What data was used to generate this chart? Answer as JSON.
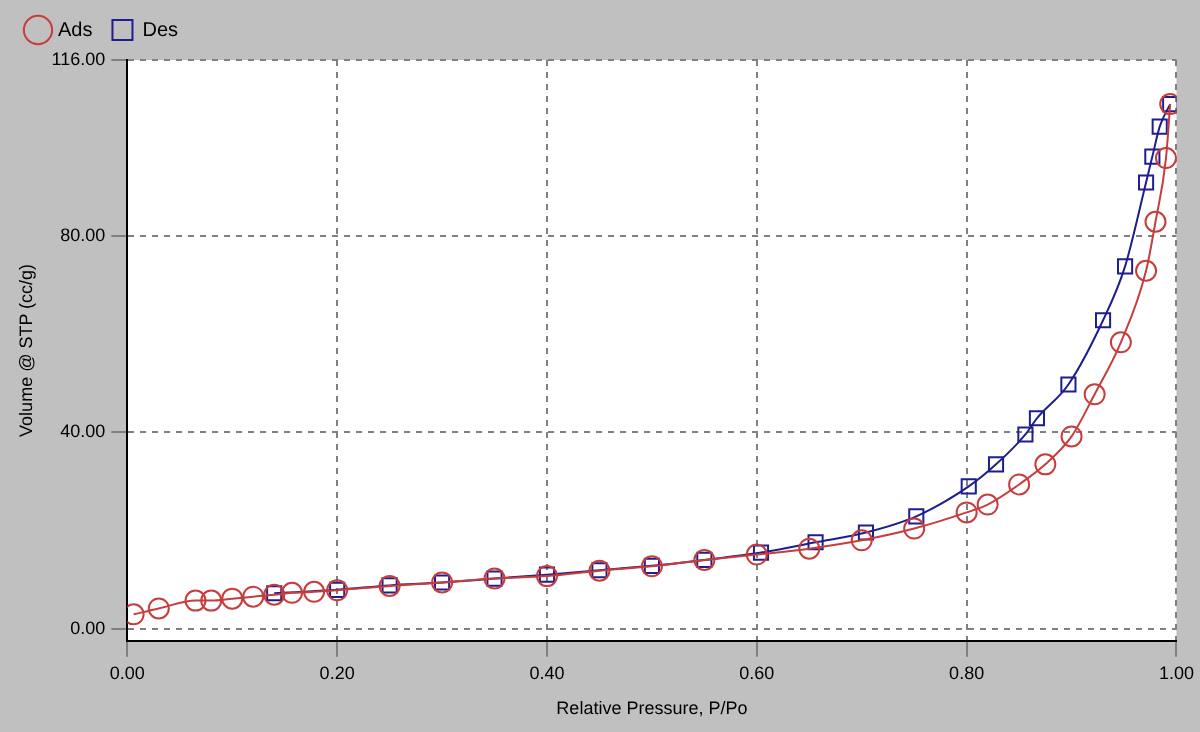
{
  "chart_data": {
    "type": "line",
    "xlabel": "Relative Pressure, P/Po",
    "ylabel": "Volume @ STP (cc/g)",
    "xlim": [
      0,
      1
    ],
    "ylim": [
      -2.5,
      116
    ],
    "xticks": [
      {
        "value": 0,
        "label": "0.00"
      },
      {
        "value": 0.2,
        "label": "0.20"
      },
      {
        "value": 0.4,
        "label": "0.40"
      },
      {
        "value": 0.6,
        "label": "0.60"
      },
      {
        "value": 0.8,
        "label": "0.80"
      },
      {
        "value": 1,
        "label": "1.00"
      }
    ],
    "yticks": [
      {
        "value": 0,
        "label": "0.00"
      },
      {
        "value": 40,
        "label": "40.00"
      },
      {
        "value": 80,
        "label": "80.00"
      },
      {
        "value": 116,
        "label": "116.00"
      }
    ],
    "grid": true,
    "legend": "top left",
    "line_style": "solid",
    "series": [
      {
        "name": "Ads",
        "color": "#c83c3c",
        "marker": "circle",
        "x": [
          0.006,
          0.03,
          0.065,
          0.08,
          0.1,
          0.12,
          0.14,
          0.157,
          0.178,
          0.2,
          0.25,
          0.3,
          0.35,
          0.4,
          0.45,
          0.5,
          0.55,
          0.6,
          0.65,
          0.7,
          0.75,
          0.8,
          0.82,
          0.85,
          0.875,
          0.9,
          0.922,
          0.947,
          0.971,
          0.98,
          0.99,
          0.994
        ],
        "values": [
          2.9,
          4.1,
          5.7,
          5.7,
          6.1,
          6.5,
          6.9,
          7.3,
          7.5,
          7.8,
          8.7,
          9.4,
          10.2,
          10.7,
          11.8,
          12.7,
          14,
          15.1,
          16.3,
          18,
          20.4,
          23.7,
          25.3,
          29.4,
          33.5,
          39.2,
          47.8,
          58.4,
          73,
          83,
          96,
          107
        ]
      },
      {
        "name": "Des",
        "color": "#1e1e8c",
        "marker": "square",
        "x": [
          0.994,
          0.984,
          0.977,
          0.971,
          0.951,
          0.93,
          0.897,
          0.867,
          0.856,
          0.828,
          0.802,
          0.752,
          0.704,
          0.656,
          0.604,
          0.55,
          0.5,
          0.45,
          0.4,
          0.35,
          0.3,
          0.25,
          0.2,
          0.14
        ],
        "values": [
          107,
          102.4,
          96.3,
          91,
          73.9,
          62.9,
          49.8,
          42.9,
          39.6,
          33.5,
          29,
          22.9,
          19.6,
          17.6,
          15.5,
          14,
          12.8,
          11.9,
          11,
          10.2,
          9.4,
          8.8,
          7.9,
          7.2
        ]
      }
    ]
  }
}
